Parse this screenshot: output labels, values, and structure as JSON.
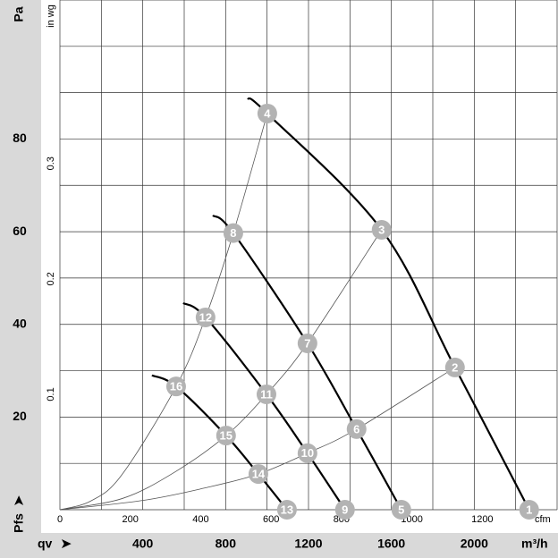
{
  "chart_data": {
    "type": "line",
    "y_unit": "Pa",
    "y2_unit": "in wg",
    "x_unit": "m³/h",
    "x2_unit": "cfm",
    "x_label": "qv",
    "y_label": "Pfs",
    "xlim": [
      0,
      2400
    ],
    "xticks": [
      400,
      800,
      1200,
      1600,
      2000
    ],
    "xgrid": [
      0,
      200,
      400,
      600,
      800,
      1000,
      1200,
      1400,
      1600,
      1800,
      2000,
      2200,
      2400
    ],
    "x2lim": [
      0,
      1412.6
    ],
    "x2ticks": [
      0,
      200,
      400,
      600,
      800,
      1000,
      1200
    ],
    "ylim": [
      0,
      110
    ],
    "yticks": [
      20,
      40,
      60,
      80
    ],
    "ygrid": [
      0,
      10,
      20,
      30,
      40,
      50,
      60,
      70,
      80,
      90,
      100,
      110
    ],
    "y2lim": [
      0,
      0.4416
    ],
    "y2ticks": [
      0.1,
      0.2,
      0.3
    ],
    "marker_color": "#b3b3b3",
    "series": [
      {
        "kind": "performance",
        "color": "#000000",
        "width": 2.2,
        "x": [
          906,
          1001,
          1553,
          1907,
          2265
        ],
        "values": [
          88.8,
          85.5,
          60.4,
          30.7,
          0
        ],
        "point_labels": [
          null,
          "4",
          "3",
          "2",
          "1"
        ]
      },
      {
        "kind": "performance",
        "color": "#000000",
        "width": 2.2,
        "x": [
          738,
          837,
          1195,
          1432,
          1648
        ],
        "values": [
          63.5,
          59.7,
          35.9,
          17.4,
          0
        ],
        "point_labels": [
          null,
          "8",
          "7",
          "6",
          "5"
        ]
      },
      {
        "kind": "performance",
        "color": "#000000",
        "width": 2.2,
        "x": [
          595,
          703,
          997,
          1195,
          1376
        ],
        "values": [
          44.6,
          41.5,
          24.9,
          12.2,
          0
        ],
        "point_labels": [
          null,
          "12",
          "11",
          "10",
          "9"
        ]
      },
      {
        "kind": "performance",
        "color": "#000000",
        "width": 2.2,
        "x": [
          444,
          561,
          802,
          958,
          1096
        ],
        "values": [
          29.0,
          26.6,
          16.0,
          7.7,
          0
        ],
        "point_labels": [
          null,
          "16",
          "15",
          "14",
          "13"
        ]
      },
      {
        "kind": "system",
        "color": "#555555",
        "width": 0.8,
        "x": [
          0,
          150,
          300,
          561,
          703,
          837,
          1001
        ],
        "values": [
          0,
          1.9,
          7.6,
          26.6,
          41.5,
          59.7,
          85.5
        ]
      },
      {
        "kind": "system",
        "color": "#555555",
        "width": 0.8,
        "x": [
          0,
          300,
          550,
          802,
          997,
          1195,
          1553
        ],
        "values": [
          0,
          2.4,
          8.0,
          16.0,
          24.9,
          35.9,
          60.4
        ]
      },
      {
        "kind": "system",
        "color": "#555555",
        "width": 0.8,
        "x": [
          0,
          400,
          700,
          958,
          1195,
          1432,
          1907
        ],
        "values": [
          0,
          2.0,
          4.7,
          7.7,
          12.2,
          17.4,
          30.7
        ]
      }
    ]
  }
}
